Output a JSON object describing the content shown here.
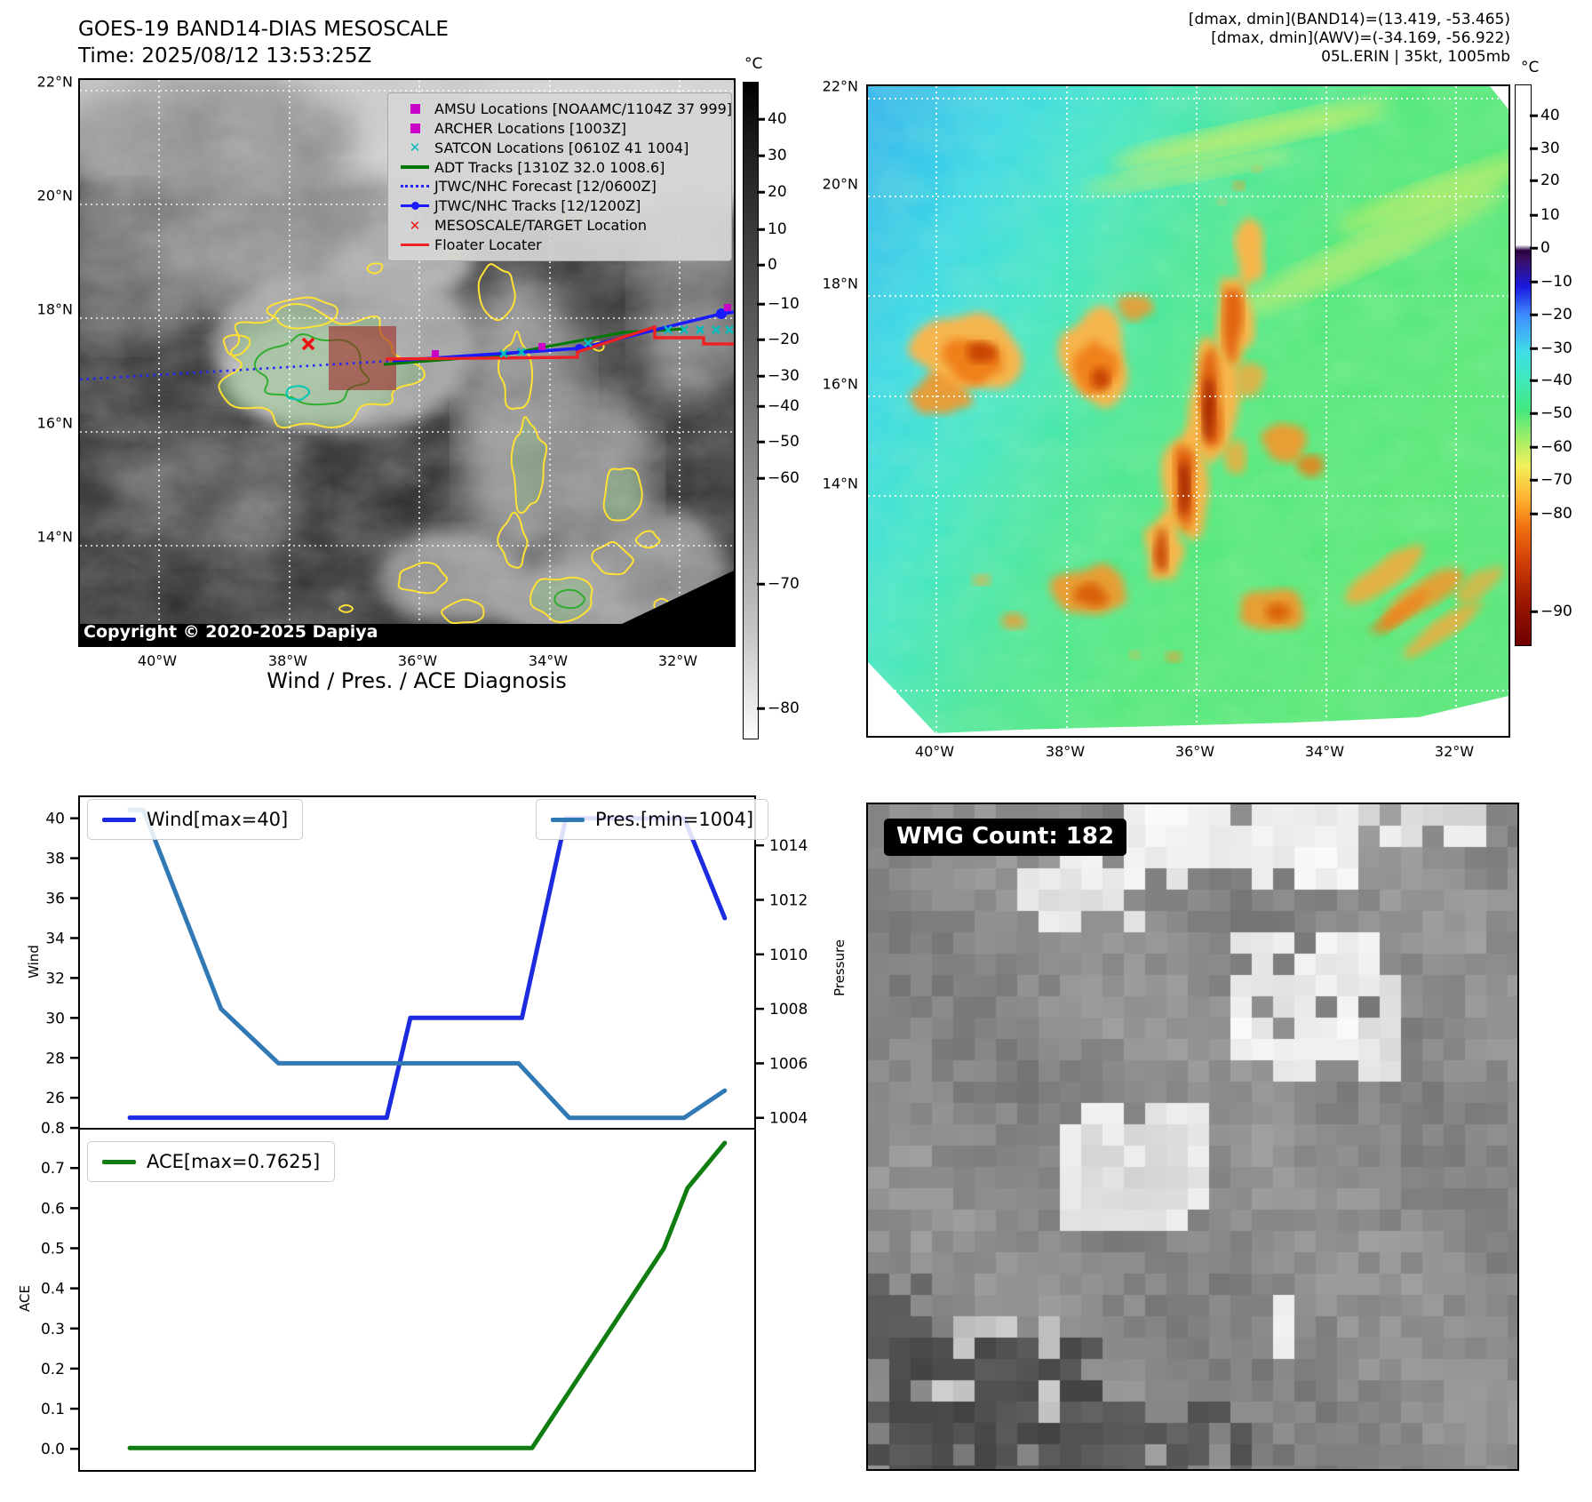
{
  "header": {
    "title_line1": "GOES-19 BAND14-DIAS MESOSCALE",
    "title_line2": "Time: 2025/08/12 13:53:25Z",
    "right_line1": "[dmax, dmin](BAND14)=(13.419, -53.465)",
    "right_line2": "[dmax, dmin](AWV)=(-34.169, -56.922)",
    "right_line3": "05L.ERIN | 35kt, 1005mb"
  },
  "satellite_panel": {
    "copyright": "Copyright © 2020-2025 Dapiya",
    "lat_labels": [
      "22°N",
      "20°N",
      "18°N",
      "16°N",
      "14°N"
    ],
    "lon_labels": [
      "40°W",
      "38°W",
      "36°W",
      "34°W",
      "32°W"
    ],
    "colorbar_unit": "°C",
    "colorbar_ticks": [
      "40",
      "30",
      "20",
      "10",
      "0",
      "−10",
      "−20",
      "−30",
      "−40",
      "−50",
      "−60",
      "−70",
      "−80"
    ],
    "legend": [
      {
        "marker": "square",
        "color": "#c800c8",
        "label": "AMSU Locations [NOAAMC/1104Z 37 999]"
      },
      {
        "marker": "square",
        "color": "#c800c8",
        "label": "ARCHER Locations [1003Z]"
      },
      {
        "marker": "x",
        "color": "#00bcbc",
        "label": "SATCON Locations [0610Z 41 1004]"
      },
      {
        "marker": "line",
        "color": "#007a00",
        "label": "ADT Tracks [1310Z 32.0 1008.6]"
      },
      {
        "marker": "dotted",
        "color": "#2323ff",
        "label": "JTWC/NHC Forecast [12/0600Z]"
      },
      {
        "marker": "line-dot",
        "color": "#1a1aff",
        "label": "JTWC/NHC Tracks [12/1200Z]"
      },
      {
        "marker": "x",
        "color": "#ee1111",
        "label": "MESOSCALE/TARGET Location"
      },
      {
        "marker": "line",
        "color": "#ee2222",
        "label": "Floater Locater"
      }
    ]
  },
  "awv_panel": {
    "lat_labels": [
      "22°N",
      "20°N",
      "18°N",
      "16°N",
      "14°N"
    ],
    "lon_labels": [
      "40°W",
      "38°W",
      "36°W",
      "34°W",
      "32°W"
    ],
    "colorbar_unit": "°C",
    "colorbar_ticks": [
      "40",
      "30",
      "20",
      "10",
      "0",
      "−10",
      "−20",
      "−30",
      "−40",
      "−50",
      "−60",
      "−70",
      "−80",
      "−90"
    ]
  },
  "diagnosis": {
    "title": "Wind / Pres. / ACE Diagnosis"
  },
  "wmg_panel": {
    "count_label": "WMG Count: 182"
  },
  "chart_data": [
    {
      "id": "wind-pres",
      "type": "line",
      "title": "Wind / Pres. / ACE Diagnosis",
      "ylabel": "Wind",
      "y2label": "Pressure",
      "ylim": [
        24.45,
        41.1
      ],
      "y2lim": [
        1003.6,
        1015.8
      ],
      "yticks": [
        40,
        38,
        36,
        34,
        32,
        30,
        28,
        26
      ],
      "y2ticks": [
        1014,
        1012,
        1010,
        1008,
        1006,
        1004
      ],
      "tick_fmt": "int",
      "legend_position": "upper-left-and-upper-right",
      "grid": false,
      "series": [
        {
          "name": "Wind[max=40]",
          "color": "#1c2be0",
          "width": 5,
          "axis": "y",
          "x": [
            0.075,
            0.455,
            0.49,
            0.655,
            0.72,
            0.895,
            0.955
          ],
          "values": [
            25,
            25,
            30,
            30,
            40,
            40,
            35
          ]
        },
        {
          "name": "Pres.[min=1004]",
          "color": "#3179b5",
          "width": 5,
          "axis": "y2",
          "x": [
            0.075,
            0.095,
            0.21,
            0.295,
            0.65,
            0.725,
            0.895,
            0.955
          ],
          "values": [
            1015.3,
            1015.3,
            1008,
            1006,
            1006,
            1004,
            1004,
            1005
          ]
        }
      ]
    },
    {
      "id": "ace",
      "type": "line",
      "ylabel": "ACE",
      "ylim": [
        -0.055,
        0.798
      ],
      "yticks": [
        0.8,
        0.7,
        0.6,
        0.5,
        0.4,
        0.3,
        0.2,
        0.1,
        0.0
      ],
      "tick_fmt": "1dp",
      "legend_position": "upper-left",
      "grid": false,
      "series": [
        {
          "name": "ACE[max=0.7625]",
          "color": "#0f7d0f",
          "width": 5,
          "axis": "y",
          "x": [
            0.075,
            0.67,
            0.865,
            0.9,
            0.955
          ],
          "values": [
            0.002,
            0.002,
            0.5,
            0.65,
            0.7625
          ]
        }
      ]
    }
  ]
}
